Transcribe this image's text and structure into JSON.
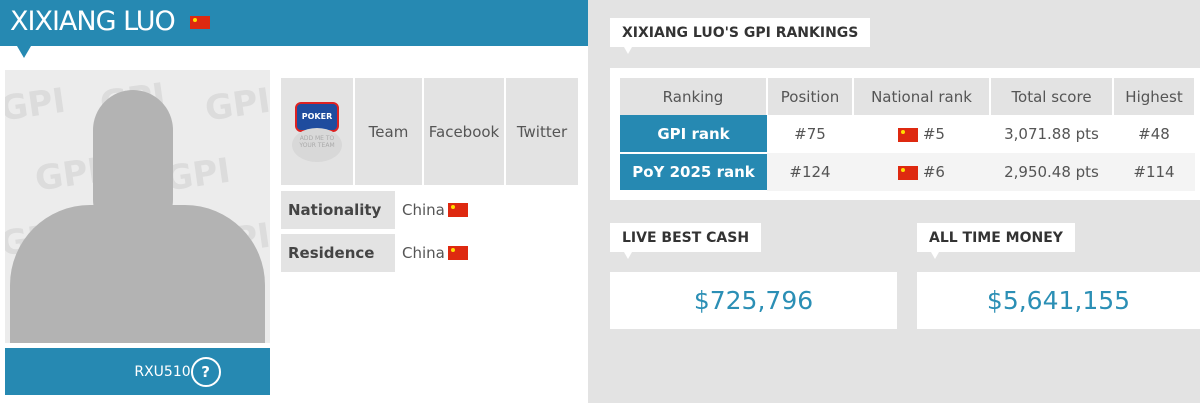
{
  "player": {
    "name": "XIXIANG LUO",
    "flag": "china-flag",
    "username": "RXU510",
    "help_icon": "?"
  },
  "social": {
    "logo_top": "POKER",
    "logo_sub": "ADD ME TO YOUR TEAM",
    "items": [
      "Team",
      "Facebook",
      "Twitter"
    ]
  },
  "info": [
    {
      "label": "Nationality",
      "value": "China"
    },
    {
      "label": "Residence",
      "value": "China"
    }
  ],
  "rankings": {
    "title": "XIXIANG LUO'S GPI RANKINGS",
    "headers": [
      "Ranking",
      "Position",
      "National rank",
      "Total score",
      "Highest"
    ],
    "rows": [
      {
        "ranking": "GPI rank",
        "position": "#75",
        "national": "#5",
        "total": "3,071.88 pts",
        "highest": "#48"
      },
      {
        "ranking": "PoY 2025 rank",
        "position": "#124",
        "national": "#6",
        "total": "2,950.48 pts",
        "highest": "#114"
      }
    ]
  },
  "live_best_cash": {
    "label": "LIVE BEST CASH",
    "value": "$725,796"
  },
  "all_time_money": {
    "label": "ALL TIME MONEY",
    "value": "$5,641,155"
  },
  "colors": {
    "accent": "#2689b2",
    "panel": "#e3e3e3"
  }
}
